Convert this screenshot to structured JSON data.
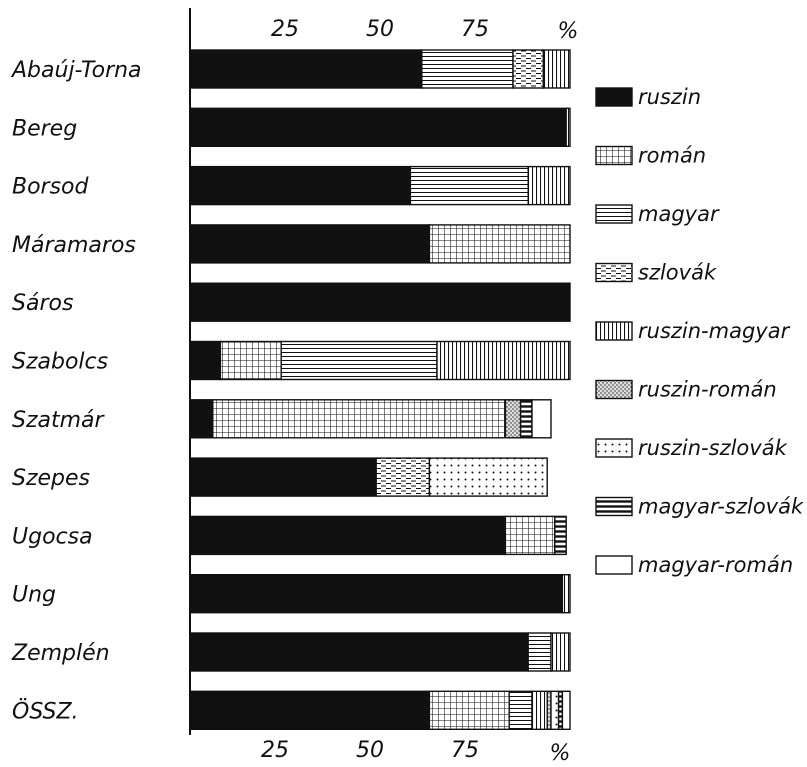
{
  "chart_data": {
    "type": "bar",
    "orientation": "horizontal",
    "stacked": true,
    "title": "",
    "xlabel": "",
    "ylabel": "",
    "x_unit": "%",
    "xlim": [
      0,
      100
    ],
    "xticks": [
      "25",
      "50",
      "75"
    ],
    "grid": false,
    "legend_position": "right",
    "categories": [
      "Abaúj-Torna",
      "Bereg",
      "Borsod",
      "Máramaros",
      "Sáros",
      "Szabolcs",
      "Szatmár",
      "Szepes",
      "Ugocsa",
      "Ung",
      "Zemplén",
      "ÖSSZ."
    ],
    "series": [
      {
        "name": "ruszin",
        "pattern": "solid",
        "values": [
          61,
          99,
          58,
          63,
          100,
          8,
          6,
          49,
          83,
          98,
          89,
          63
        ]
      },
      {
        "name": "román",
        "pattern": "grid",
        "values": [
          0,
          0,
          0,
          37,
          0,
          16,
          77,
          0,
          13,
          0,
          0,
          21
        ]
      },
      {
        "name": "magyar",
        "pattern": "hlines",
        "values": [
          24,
          0,
          31,
          0,
          0,
          41,
          0,
          0,
          0,
          0,
          6,
          6
        ]
      },
      {
        "name": "szlovák",
        "pattern": "dashes",
        "values": [
          8,
          0,
          0,
          0,
          0,
          0,
          0,
          14,
          0,
          0,
          0,
          0
        ]
      },
      {
        "name": "ruszin-magyar",
        "pattern": "vlines",
        "values": [
          7,
          1,
          11,
          0,
          0,
          35,
          0,
          0,
          0,
          2,
          5,
          4
        ]
      },
      {
        "name": "ruszin-román",
        "pattern": "dots",
        "values": [
          0,
          0,
          0,
          0,
          0,
          0,
          4,
          0,
          0,
          0,
          0,
          1
        ]
      },
      {
        "name": "ruszin-szlovák",
        "pattern": "dotgrid",
        "values": [
          0,
          0,
          0,
          0,
          0,
          0,
          0,
          31,
          0,
          0,
          0,
          2
        ]
      },
      {
        "name": "magyar-szlovák",
        "pattern": "thicklines",
        "values": [
          0,
          0,
          0,
          0,
          0,
          0,
          3,
          0,
          3,
          0,
          0,
          1
        ]
      },
      {
        "name": "magyar-román",
        "pattern": "empty",
        "values": [
          0,
          0,
          0,
          0,
          0,
          0,
          5,
          0,
          0,
          0,
          0,
          2
        ]
      }
    ]
  }
}
